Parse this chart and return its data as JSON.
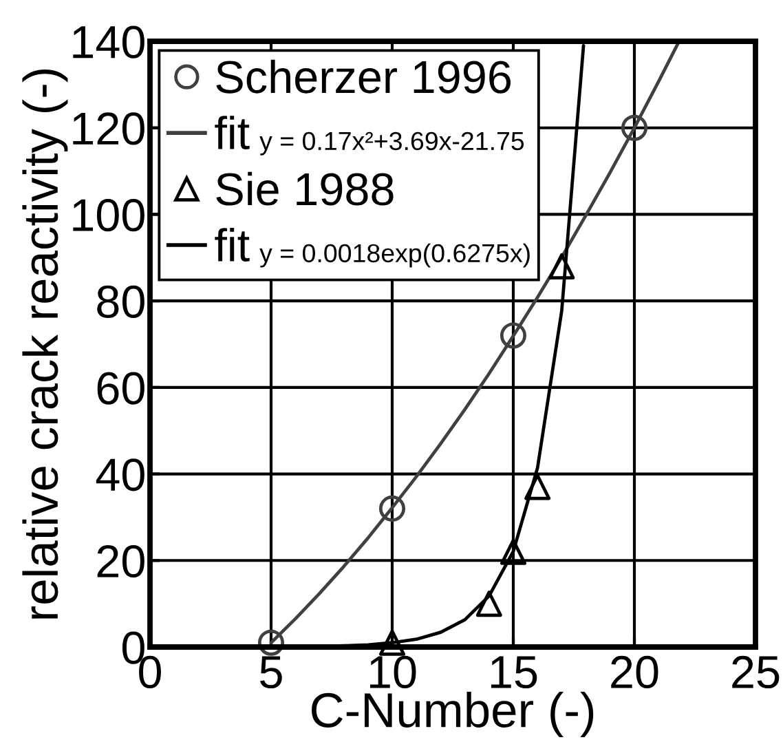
{
  "chart_data": {
    "type": "scatter",
    "xlabel": "C-Number (-)",
    "ylabel": "relative crack reactivity (-)",
    "xlim": [
      0,
      25
    ],
    "ylim": [
      0,
      140
    ],
    "xticks": [
      0,
      5,
      10,
      15,
      20,
      25
    ],
    "yticks": [
      0,
      20,
      40,
      60,
      80,
      100,
      120,
      140
    ],
    "grid": true,
    "legend": "top left",
    "annotations": [
      "y = 0.17x²+3.69x-21.75",
      "y = 0.0018exp(0.6275x)"
    ],
    "series": [
      {
        "name": "Scherzer 1996",
        "marker": "circle",
        "color": "#404040",
        "x": [
          5,
          10,
          15,
          20
        ],
        "values": [
          1,
          32,
          72,
          120
        ]
      },
      {
        "name": "fit",
        "type": "line",
        "marker": "none",
        "line_style": "solid",
        "color": "#404040",
        "x": [
          5,
          6,
          7,
          8,
          9,
          10,
          11,
          12,
          13,
          14,
          15,
          16,
          17,
          18,
          19,
          20,
          21,
          21.8
        ],
        "values": [
          1,
          6.5,
          12.4,
          18.6,
          25.2,
          32.2,
          39.4,
          47.0,
          54.9,
          63.2,
          71.9,
          80.8,
          90.1,
          99.8,
          109.7,
          120,
          130.7,
          139.5
        ]
      },
      {
        "name": "Sie 1988",
        "marker": "triangle",
        "color": "#000000",
        "x": [
          10,
          14,
          15,
          16,
          17
        ],
        "values": [
          1,
          10,
          22,
          37,
          88
        ]
      },
      {
        "name": "fit",
        "type": "line",
        "marker": "none",
        "line_style": "solid",
        "color": "#000000",
        "x": [
          5,
          6,
          7,
          8,
          9,
          10,
          11,
          12,
          13,
          14,
          15,
          16,
          17,
          17.9
        ],
        "values": [
          0,
          0.1,
          0.1,
          0.3,
          0.5,
          1,
          1.8,
          3.4,
          6.3,
          11.8,
          22.1,
          41.4,
          77.7,
          139
        ]
      }
    ]
  }
}
